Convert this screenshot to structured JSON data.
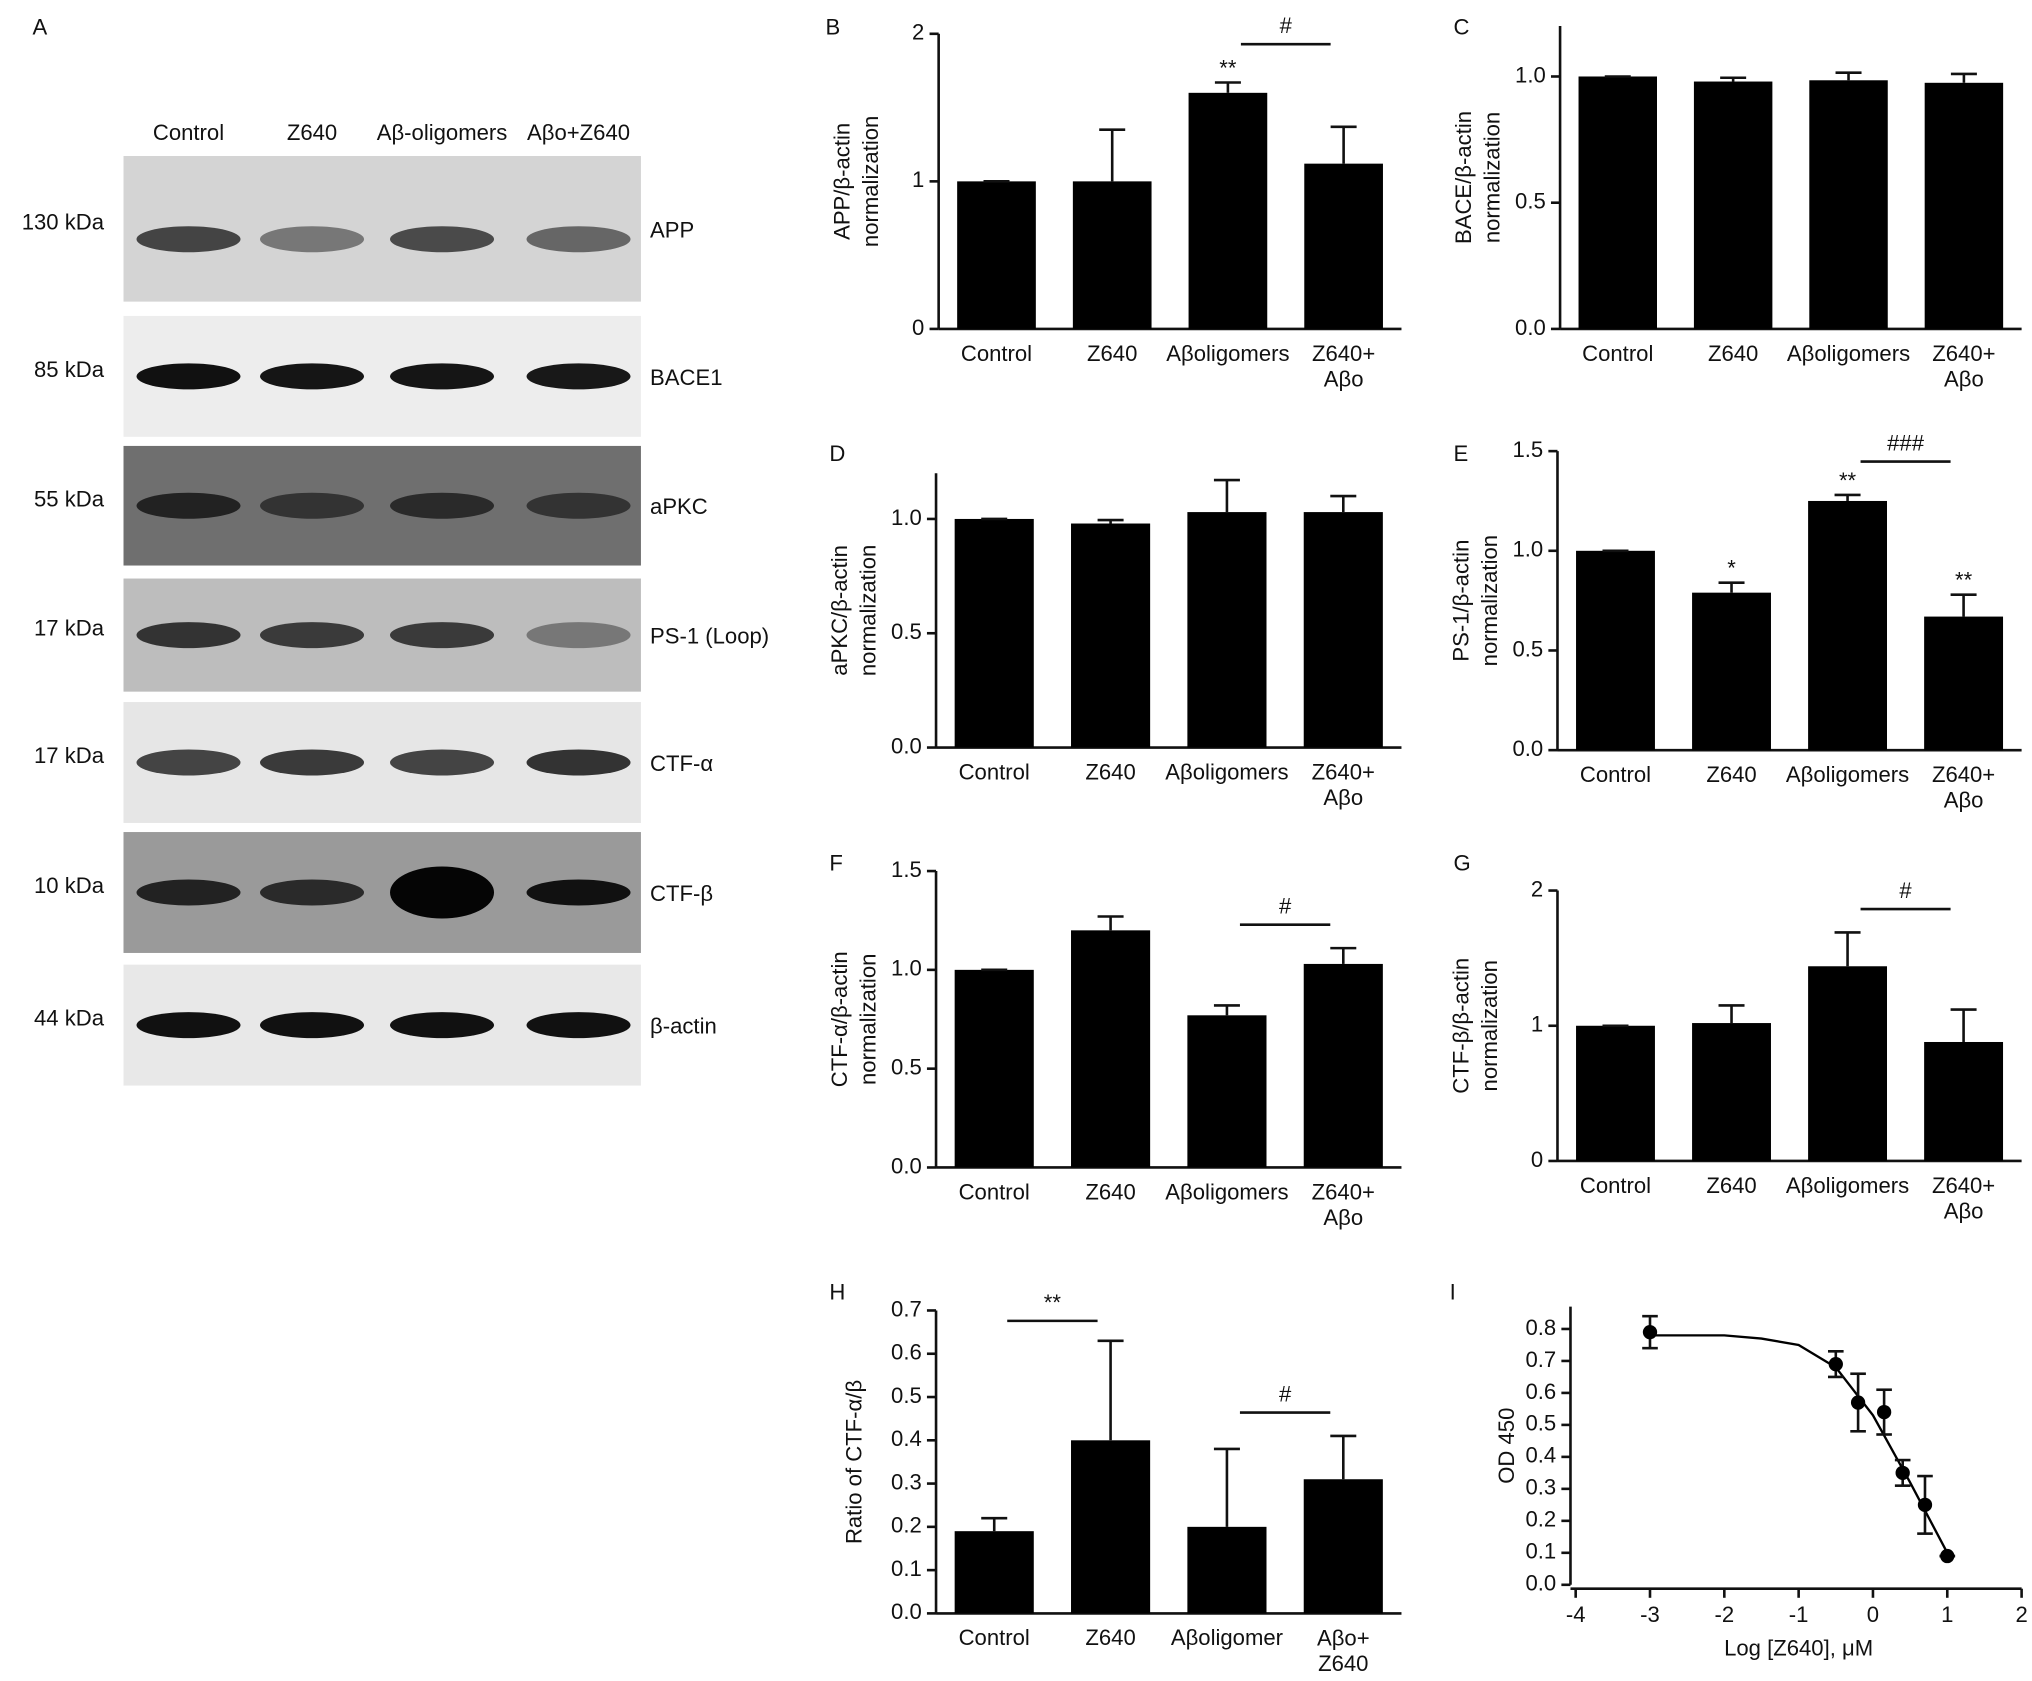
{
  "blot": {
    "panel": "A",
    "lanes": [
      "Control",
      "Z640",
      "Aβ-oligomers",
      "Aβo+Z640"
    ],
    "rows": [
      {
        "size": "130 kDa",
        "protein": "APP"
      },
      {
        "size": "85 kDa",
        "protein": "BACE1"
      },
      {
        "size": "55 kDa",
        "protein": "aPKC"
      },
      {
        "size": "17 kDa",
        "protein": "PS-1 (Loop)"
      },
      {
        "size": "17 kDa",
        "protein": "CTF-α"
      },
      {
        "size": "10 kDa",
        "protein": "CTF-β"
      },
      {
        "size": "44 kDa",
        "protein": "β-actin"
      }
    ]
  },
  "chart_data": [
    {
      "type": "bar",
      "panel": "B",
      "y_label": [
        "APP/β-actin",
        "normalization"
      ],
      "categories": [
        "Control",
        "Z640",
        "Aβoligomers",
        "Z640+ Aβo"
      ],
      "values": [
        1,
        1.0,
        1.6,
        1.12
      ],
      "errors": [
        0,
        0.35,
        0.07,
        0.25
      ],
      "color": "#000000",
      "significance": [
        null,
        null,
        "**",
        null
      ],
      "comparisons": [
        {
          "text": "#",
          "between": [
            "Aβoligomers",
            "Z640+ Aβo"
          ]
        }
      ],
      "ylim": [
        0,
        2
      ],
      "yticks": [
        0,
        1,
        2
      ]
    },
    {
      "type": "bar",
      "panel": "C",
      "y_label": [
        "BACE/β-actin",
        "normalization"
      ],
      "categories": [
        "Control",
        "Z640",
        "Aβoligomers",
        "Z640+ Aβo"
      ],
      "values": [
        1,
        0.98,
        0.985,
        0.975
      ],
      "errors": [
        0,
        0.015,
        0.03,
        0.035
      ],
      "color": "#000000",
      "ylim": [
        0,
        1.2
      ],
      "yticks": [
        {
          "value": 0,
          "label": "0.0"
        },
        0.5,
        {
          "value": 1,
          "label": "1.0"
        }
      ]
    },
    {
      "type": "bar",
      "panel": "D",
      "y_label": [
        "aPKC/β-actin",
        "normalization"
      ],
      "categories": [
        "Control",
        "Z640",
        "Aβoligomers",
        "Z640+ Aβo"
      ],
      "values": [
        1,
        0.98,
        1.03,
        1.03
      ],
      "errors": [
        0,
        0.015,
        0.14,
        0.07
      ],
      "color": "#000000",
      "ylim": [
        0,
        1.2
      ],
      "yticks": [
        {
          "value": 0,
          "label": "0.0"
        },
        0.5,
        {
          "value": 1,
          "label": "1.0"
        }
      ]
    },
    {
      "type": "bar",
      "panel": "E",
      "y_label": [
        "PS-1/β-actin",
        "normalization"
      ],
      "categories": [
        "Control",
        "Z640",
        "Aβoligomers",
        "Z640+ Aβo"
      ],
      "values": [
        1,
        0.79,
        1.25,
        0.67
      ],
      "errors": [
        0,
        0.05,
        0.03,
        0.11
      ],
      "color": "#000000",
      "significance": [
        null,
        "*",
        "**",
        "**"
      ],
      "comparisons": [
        {
          "text": "###",
          "between": [
            "Aβoligomers",
            "Z640+ Aβo"
          ]
        }
      ],
      "ylim": [
        0,
        1.5
      ],
      "yticks": [
        {
          "value": 0,
          "label": "0.0"
        },
        0.5,
        {
          "value": 1,
          "label": "1.0"
        },
        1.5
      ]
    },
    {
      "type": "bar",
      "panel": "F",
      "y_label": [
        "CTF-α/β-actin",
        "normalization"
      ],
      "categories": [
        "Control",
        "Z640",
        "Aβoligomers",
        "Z640+ Aβo"
      ],
      "values": [
        1,
        1.2,
        0.77,
        1.03
      ],
      "errors": [
        0,
        0.07,
        0.05,
        0.08
      ],
      "color": "#000000",
      "comparisons": [
        {
          "text": "#",
          "between": [
            "Aβoligomers",
            "Z640+ Aβo"
          ]
        }
      ],
      "ylim": [
        0,
        1.5
      ],
      "yticks": [
        {
          "value": 0,
          "label": "0.0"
        },
        0.5,
        {
          "value": 1,
          "label": "1.0"
        },
        1.5
      ]
    },
    {
      "type": "bar",
      "panel": "G",
      "y_label": [
        "CTF-β/β-actin",
        "normalization"
      ],
      "categories": [
        "Control",
        "Z640",
        "Aβoligomers",
        "Z640+ Aβo"
      ],
      "values": [
        1,
        1.02,
        1.44,
        0.88
      ],
      "errors": [
        0,
        0.13,
        0.25,
        0.24
      ],
      "color": "#000000",
      "comparisons": [
        {
          "text": "#",
          "between": [
            "Aβoligomers",
            "Z640+ Aβo"
          ]
        }
      ],
      "ylim": [
        0,
        2
      ],
      "yticks": [
        0,
        1,
        2
      ]
    },
    {
      "type": "bar",
      "panel": "H",
      "y_label": [
        "Ratio of CTF-α/β"
      ],
      "categories": [
        "Control",
        "Z640",
        "Aβoligomer",
        "Aβo+ Z640"
      ],
      "values": [
        0.19,
        0.4,
        0.2,
        0.31
      ],
      "errors": [
        0.03,
        0.23,
        0.18,
        0.1
      ],
      "color": "#000000",
      "comparisons": [
        {
          "text": "**",
          "between": [
            "Control",
            "Z640"
          ]
        },
        {
          "text": "#",
          "between": [
            "Aβoligomer",
            "Aβo+ Z640"
          ]
        }
      ],
      "ylim": [
        0,
        0.7
      ],
      "yticks": [
        {
          "value": 0,
          "label": "0.0"
        },
        0.1,
        0.2,
        0.3,
        0.4,
        0.5,
        0.6,
        0.7
      ]
    },
    {
      "type": "scatter",
      "panel": "I",
      "x_label": "Log [Z640], μM",
      "y_label": [
        "OD 450"
      ],
      "x": [
        -3,
        -0.5,
        -0.2,
        0.15,
        0.4,
        0.7,
        1
      ],
      "values": [
        0.79,
        0.69,
        0.57,
        0.54,
        0.35,
        0.25,
        0.09
      ],
      "errors": [
        0.05,
        0.04,
        0.09,
        0.07,
        0.04,
        0.09,
        0
      ],
      "color": "#000000",
      "curve": {
        "x": [
          -3,
          -2,
          -1.5,
          -1,
          -0.5,
          0,
          0.5,
          1
        ],
        "values": [
          0.78,
          0.78,
          0.77,
          0.75,
          0.68,
          0.53,
          0.32,
          0.1
        ]
      },
      "xlim": [
        -4,
        2
      ],
      "xticks": [
        -4,
        -3,
        -2,
        -1,
        0,
        1,
        2
      ],
      "ylim": [
        0,
        0.87
      ],
      "yticks": [
        {
          "value": 0,
          "label": "0.0"
        },
        0.1,
        0.2,
        0.3,
        0.4,
        0.5,
        0.6,
        0.7,
        0.8
      ]
    }
  ]
}
